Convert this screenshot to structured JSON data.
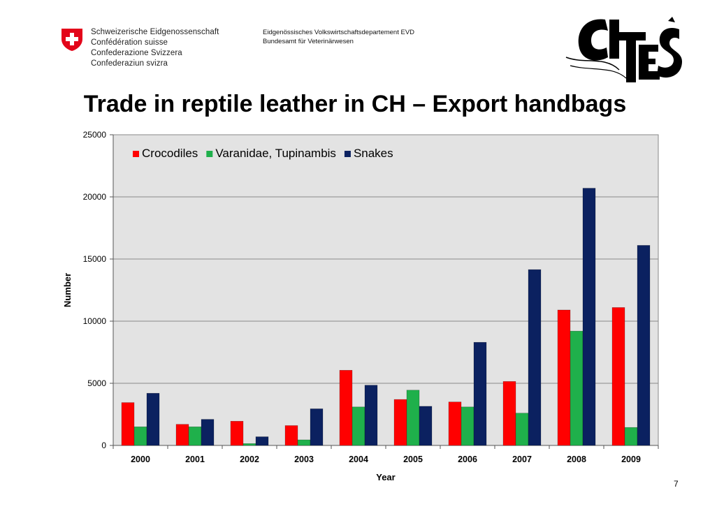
{
  "header": {
    "org_lines": [
      "Schweizerische Eidgenossenschaft",
      "Confédération suisse",
      "Confederazione Svizzera",
      "Confederaziun svizra"
    ],
    "dept_lines": [
      "Eidgenössisches Volkswirtschaftsdepartement EVD",
      "Bundesamt für Veterinärwesen"
    ],
    "cites_logo_text": "CITES"
  },
  "slide": {
    "title": "Trade in reptile leather in CH – Export handbags",
    "page_number": "7"
  },
  "colors": {
    "crocodiles": "#FF0000",
    "varanidae": "#1FB04B",
    "snakes": "#0B2160",
    "plot_bg": "#E3E3E3",
    "crest_red": "#E3061A"
  },
  "chart_data": {
    "type": "bar",
    "title": "",
    "xlabel": "Year",
    "ylabel": "Number",
    "ylim": [
      0,
      25000
    ],
    "yticks": [
      0,
      5000,
      10000,
      15000,
      20000,
      25000
    ],
    "grid": true,
    "legend_position": "top-left",
    "categories": [
      "2000",
      "2001",
      "2002",
      "2003",
      "2004",
      "2005",
      "2006",
      "2007",
      "2008",
      "2009"
    ],
    "series": [
      {
        "name": "Crocodiles",
        "color": "#FF0000",
        "values": [
          3450,
          1700,
          1950,
          1600,
          6050,
          3700,
          3500,
          5150,
          10900,
          11100
        ]
      },
      {
        "name": "Varanidae, Tupinambis",
        "color": "#1FB04B",
        "values": [
          1500,
          1500,
          150,
          450,
          3100,
          4450,
          3100,
          2600,
          9200,
          1450
        ]
      },
      {
        "name": "Snakes",
        "color": "#0B2160",
        "values": [
          4200,
          2100,
          700,
          2950,
          4850,
          3150,
          8300,
          14150,
          20700,
          16100
        ]
      }
    ]
  }
}
